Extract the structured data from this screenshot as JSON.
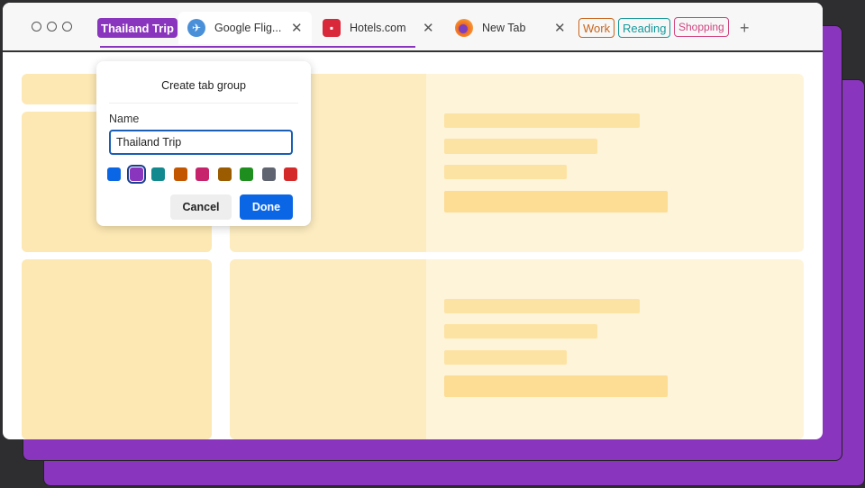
{
  "tabbar": {
    "group_active": {
      "label": "Thailand Trip",
      "color": "#8a35bd"
    },
    "tabs": [
      {
        "title": "Google Flig...",
        "icon": "plane-icon"
      },
      {
        "title": "Hotels.com",
        "icon": "hotels-icon"
      },
      {
        "title": "New Tab",
        "icon": "firefox-icon"
      }
    ],
    "groups": [
      {
        "label": "Work",
        "color": "#c8651b"
      },
      {
        "label": "Reading",
        "color": "#17999a"
      },
      {
        "label": "Shopping",
        "color": "#d0457e"
      }
    ],
    "new_tab": "+"
  },
  "dialog": {
    "title": "Create tab group",
    "name_label": "Name",
    "name_value": "Thailand Trip",
    "colors": [
      "#0a66e4",
      "#8a35bd",
      "#12898f",
      "#c35600",
      "#c7236d",
      "#9b5b00",
      "#1e8f1e",
      "#5f6470",
      "#d42a2a"
    ],
    "selected_color": "#8a35bd",
    "cancel": "Cancel",
    "done": "Done"
  }
}
